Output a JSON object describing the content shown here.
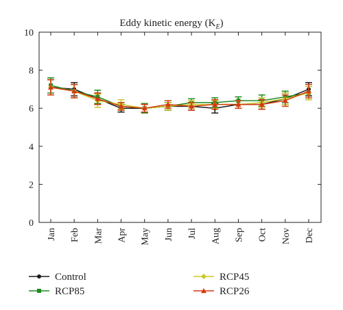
{
  "chart_data": {
    "type": "line",
    "title": "Eddy kinetic energy (K",
    "title_subscript": "E",
    "title_suffix": ")",
    "xlabel": "",
    "ylabel": "",
    "categories": [
      "Jan",
      "Feb",
      "Mar",
      "Apr",
      "May",
      "Jun",
      "Jul",
      "Aug",
      "Sep",
      "Oct",
      "Nov",
      "Dec"
    ],
    "ylim": [
      0,
      10
    ],
    "yticks": [
      0,
      2,
      4,
      6,
      8,
      10
    ],
    "grid": false,
    "legend_position": "bottom",
    "series": [
      {
        "name": "Control",
        "color": "#1a1a1a",
        "marker": "circle",
        "values": [
          7.1,
          7.0,
          6.5,
          6.0,
          6.0,
          6.1,
          6.1,
          6.0,
          6.2,
          6.2,
          6.5,
          7.0
        ],
        "errors": [
          0.4,
          0.35,
          0.3,
          0.2,
          0.2,
          0.2,
          0.2,
          0.25,
          0.2,
          0.25,
          0.3,
          0.35
        ]
      },
      {
        "name": "RCP85",
        "color": "#1e8a1e",
        "marker": "square",
        "values": [
          7.2,
          6.9,
          6.6,
          6.1,
          6.0,
          6.1,
          6.3,
          6.3,
          6.4,
          6.4,
          6.6,
          6.8
        ],
        "errors": [
          0.4,
          0.35,
          0.35,
          0.2,
          0.25,
          0.2,
          0.2,
          0.25,
          0.2,
          0.3,
          0.3,
          0.35
        ]
      },
      {
        "name": "RCP45",
        "color": "#c8c828",
        "marker": "diamond",
        "values": [
          7.1,
          6.9,
          6.4,
          6.2,
          6.0,
          6.1,
          6.2,
          6.2,
          6.2,
          6.3,
          6.5,
          6.8
        ],
        "errors": [
          0.4,
          0.35,
          0.35,
          0.25,
          0.2,
          0.2,
          0.2,
          0.2,
          0.2,
          0.25,
          0.3,
          0.35
        ]
      },
      {
        "name": "RCP26",
        "color": "#d43a10",
        "marker": "triangle",
        "values": [
          7.1,
          6.9,
          6.5,
          6.1,
          6.0,
          6.2,
          6.1,
          6.2,
          6.2,
          6.2,
          6.4,
          6.9
        ],
        "errors": [
          0.4,
          0.35,
          0.3,
          0.2,
          0.2,
          0.2,
          0.2,
          0.25,
          0.2,
          0.25,
          0.3,
          0.35
        ]
      }
    ]
  }
}
